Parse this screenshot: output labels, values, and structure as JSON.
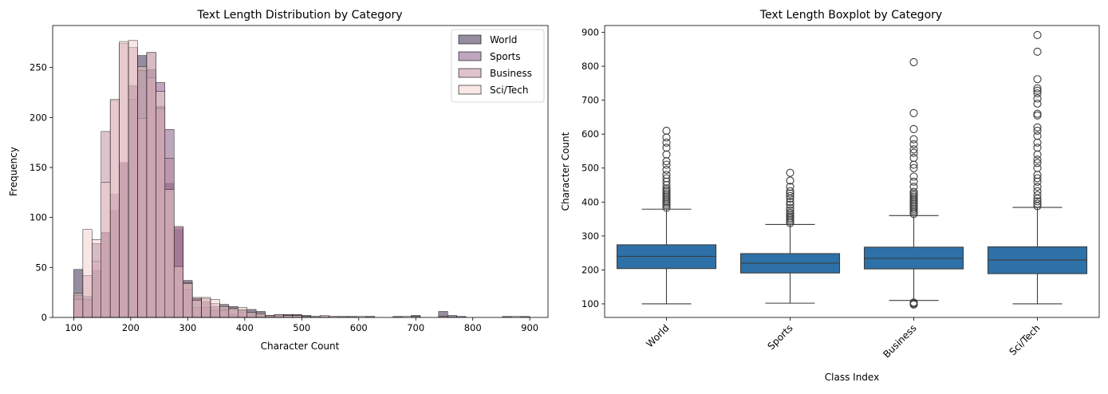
{
  "chart_data": [
    {
      "type": "bar",
      "title": "Text Length Distribution by Category",
      "xlabel": "Character Count",
      "ylabel": "Frequency",
      "xlim": [
        63,
        932
      ],
      "ylim": [
        0,
        292
      ],
      "x_ticks": [
        100,
        200,
        300,
        400,
        500,
        600,
        700,
        800,
        900
      ],
      "y_ticks": [
        0,
        50,
        100,
        150,
        200,
        250
      ],
      "legend_position": "top-right",
      "grid": false,
      "bin_start": 100,
      "bin_width": 16,
      "series": [
        {
          "name": "World",
          "color": "#2d1e3e",
          "values": [
            48,
            21,
            47,
            85,
            107,
            154,
            232,
            262,
            248,
            211,
            134,
            88,
            37,
            19,
            16,
            11,
            13,
            11,
            8,
            8,
            6,
            2,
            3,
            3,
            3,
            2,
            1,
            1,
            0,
            1,
            1,
            0,
            1,
            0,
            0,
            1,
            0,
            2,
            0,
            0,
            6,
            2,
            1,
            0,
            0,
            0,
            0,
            1,
            0,
            1
          ]
        },
        {
          "name": "Sports",
          "color": "#7e4e7d",
          "values": [
            22,
            18,
            74,
            84,
            123,
            155,
            218,
            247,
            265,
            235,
            188,
            90,
            28,
            10,
            10,
            7,
            7,
            3,
            5,
            2,
            1,
            1,
            1,
            0,
            0,
            0,
            0,
            0,
            0,
            0,
            0,
            0,
            0,
            0,
            0,
            0,
            0,
            0,
            0,
            0,
            0,
            0,
            0,
            0,
            0,
            0,
            0,
            0,
            0,
            0
          ]
        },
        {
          "name": "Business",
          "color": "#be879d",
          "values": [
            18,
            42,
            56,
            186,
            217,
            274,
            270,
            199,
            240,
            209,
            159,
            91,
            35,
            20,
            19,
            14,
            8,
            8,
            7,
            4,
            3,
            1,
            2,
            2,
            2,
            0,
            1,
            0,
            1,
            0,
            0,
            0,
            1,
            0,
            0,
            0,
            0,
            0,
            0,
            0,
            0,
            0,
            0,
            0,
            0,
            0,
            0,
            0,
            0,
            0
          ]
        },
        {
          "name": "Sci/Tech",
          "color": "#f1d0cc",
          "values": [
            24,
            88,
            78,
            135,
            218,
            276,
            277,
            251,
            265,
            226,
            128,
            51,
            34,
            17,
            20,
            18,
            11,
            9,
            10,
            5,
            4,
            2,
            3,
            2,
            2,
            1,
            1,
            2,
            1,
            1,
            0,
            1,
            0,
            0,
            0,
            0,
            1,
            1,
            0,
            0,
            1,
            0,
            0,
            0,
            0,
            0,
            0,
            0,
            1,
            0
          ]
        }
      ]
    },
    {
      "type": "box",
      "title": "Text Length Boxplot by Category",
      "xlabel": "Class Index",
      "ylabel": "Character Count",
      "categories": [
        "World",
        "Sports",
        "Business",
        "Sci/Tech"
      ],
      "ylim": [
        60,
        920
      ],
      "y_ticks": [
        100,
        200,
        300,
        400,
        500,
        600,
        700,
        800,
        900
      ],
      "box_color": "#2d71a8",
      "grid": false,
      "boxes": [
        {
          "category": "World",
          "whisker_low": 100,
          "q1": 204,
          "median": 240,
          "q3": 274,
          "whisker_high": 379,
          "outliers_low": [],
          "outliers_high": [
            383,
            390,
            395,
            400,
            405,
            410,
            415,
            420,
            425,
            430,
            435,
            440,
            450,
            460,
            470,
            480,
            495,
            510,
            520,
            540,
            560,
            575,
            590,
            610
          ]
        },
        {
          "category": "Sports",
          "whisker_low": 102,
          "q1": 191,
          "median": 220,
          "q3": 248,
          "whisker_high": 334,
          "outliers_low": [],
          "outliers_high": [
            338,
            343,
            348,
            353,
            358,
            363,
            368,
            375,
            383,
            392,
            400,
            410,
            418,
            425,
            432,
            445,
            463,
            486
          ]
        },
        {
          "category": "Business",
          "whisker_low": 110,
          "q1": 203,
          "median": 234,
          "q3": 267,
          "whisker_high": 360,
          "outliers_low": [
            98,
            101,
            104
          ],
          "outliers_high": [
            365,
            370,
            375,
            380,
            385,
            390,
            395,
            400,
            405,
            410,
            415,
            420,
            425,
            430,
            445,
            460,
            475,
            500,
            510,
            530,
            545,
            555,
            570,
            585,
            615,
            662,
            812
          ]
        },
        {
          "category": "Sci/Tech",
          "whisker_low": 100,
          "q1": 189,
          "median": 229,
          "q3": 268,
          "whisker_high": 384,
          "outliers_low": [],
          "outliers_high": [
            388,
            395,
            402,
            410,
            420,
            432,
            445,
            460,
            470,
            480,
            500,
            515,
            525,
            540,
            560,
            575,
            595,
            610,
            620,
            655,
            660,
            690,
            705,
            720,
            728,
            735,
            762,
            843,
            892
          ]
        }
      ]
    }
  ]
}
